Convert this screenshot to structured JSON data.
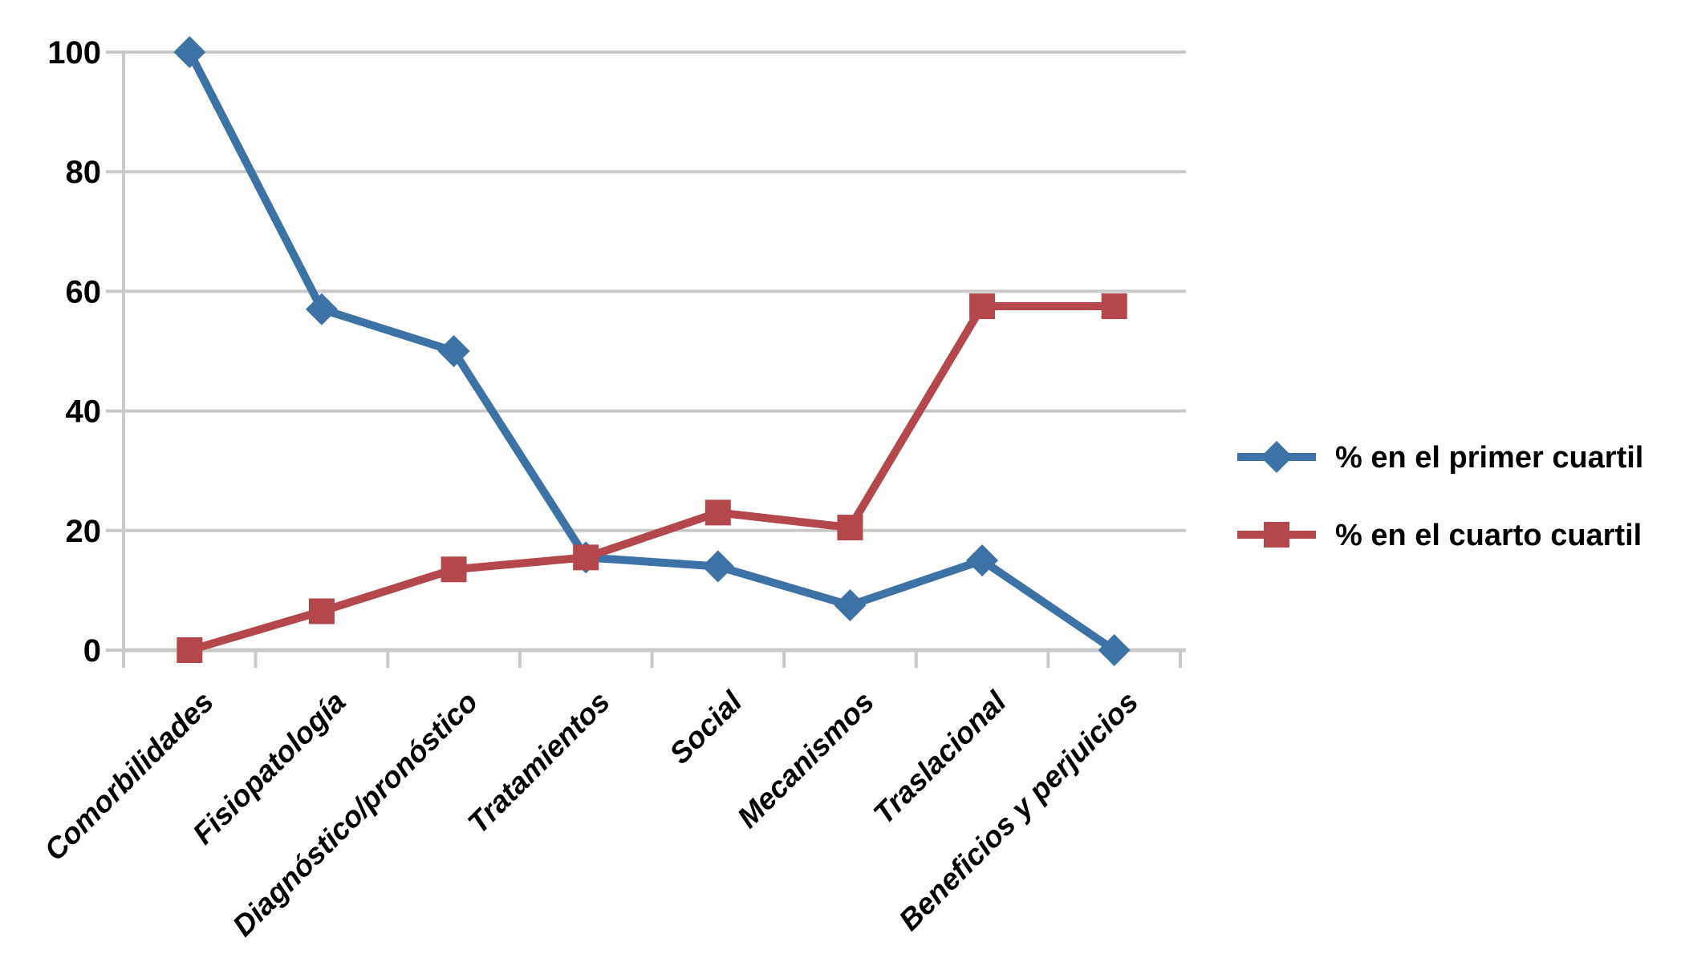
{
  "page": {
    "background": "#FFFFFF"
  },
  "chart_data": {
    "type": "line",
    "title": "",
    "xlabel": "",
    "ylabel": "",
    "categories": [
      "Comorbilidades",
      "Fisiopatología",
      "Diagnóstico/pronóstico",
      "Tratamientos",
      "Social",
      "Mecanismos",
      "Traslacional",
      "Beneficios y perjuicios"
    ],
    "series": [
      {
        "name": "% en el primer cuartil",
        "marker": "diamond",
        "color": "#3D72A7",
        "values": [
          100,
          57,
          50,
          15.5,
          14,
          7.5,
          15,
          0
        ]
      },
      {
        "name": "% en el cuarto cuartil",
        "marker": "square",
        "color": "#B3474C",
        "values": [
          0,
          6.5,
          13.5,
          15.5,
          23,
          20.5,
          57.5,
          57.5
        ]
      }
    ],
    "ylim": [
      0,
      100
    ],
    "y_ticks": [
      0,
      20,
      40,
      60,
      80,
      100
    ],
    "grid": "horizontal",
    "gridline_color": "#C9C9C9",
    "axis_color": "#C9C9C9",
    "tick_label_color": "#000000",
    "category_label_rotation": -45,
    "legend_position": "right-middle"
  }
}
